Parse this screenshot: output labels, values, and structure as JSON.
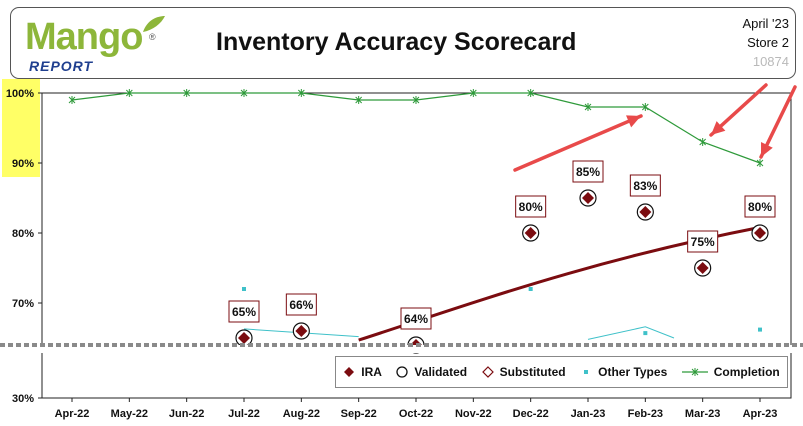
{
  "header": {
    "logo_main": "Mango",
    "logo_sub": "REPORT",
    "logo_reg": "®",
    "title": "Inventory Accuracy Scorecard",
    "period": "April '23",
    "store": "Store 2",
    "code": "10874"
  },
  "colors": {
    "ira": "#7b0c10",
    "completion": "#2e9a3a",
    "other": "#3fc1c9",
    "arrow": "#e84a4a",
    "highlight": "#ffff66"
  },
  "chart_data": {
    "type": "line",
    "categories": [
      "Apr-22",
      "May-22",
      "Jun-22",
      "Jul-22",
      "Aug-22",
      "Sep-22",
      "Oct-22",
      "Nov-22",
      "Dec-22",
      "Jan-23",
      "Feb-23",
      "Mar-23",
      "Apr-23"
    ],
    "y_tick_labels": [
      "100%",
      "90%",
      "80%",
      "70%",
      "30%"
    ],
    "y_ticks": [
      100,
      90,
      80,
      70
    ],
    "ylim": [
      64,
      100
    ],
    "y_axis_broken": true,
    "grid": false,
    "legend_position": "bottom-right",
    "series": [
      {
        "name": "IRA",
        "marker": "diamond",
        "values": [
          null,
          null,
          null,
          65,
          66,
          null,
          64,
          null,
          80,
          85,
          83,
          75,
          80
        ]
      },
      {
        "name": "Validated",
        "marker": "circle",
        "values": [
          null,
          null,
          null,
          65,
          66,
          null,
          64,
          null,
          80,
          85,
          83,
          75,
          80
        ]
      },
      {
        "name": "Substituted",
        "marker": "diamond-open",
        "values": [
          null,
          null,
          null,
          null,
          null,
          null,
          null,
          null,
          null,
          null,
          null,
          null,
          null
        ]
      },
      {
        "name": "Other Types",
        "marker": "square",
        "values": [
          null,
          null,
          null,
          72,
          null,
          null,
          null,
          null,
          72,
          null,
          null,
          null,
          null
        ]
      },
      {
        "name": "Completion",
        "marker": "star",
        "values": [
          99,
          100,
          100,
          100,
          100,
          99,
          99,
          100,
          100,
          98,
          98,
          93,
          90
        ]
      }
    ],
    "data_labels": [
      {
        "category": "Jul-22",
        "text": "65%"
      },
      {
        "category": "Aug-22",
        "text": "66%"
      },
      {
        "category": "Oct-22",
        "text": "64%"
      },
      {
        "category": "Dec-22",
        "text": "80%"
      },
      {
        "category": "Jan-23",
        "text": "85%"
      },
      {
        "category": "Feb-23",
        "text": "83%"
      },
      {
        "category": "Mar-23",
        "text": "75%"
      },
      {
        "category": "Apr-23",
        "text": "80%"
      }
    ],
    "trendline": {
      "series": "IRA",
      "type": "polynomial",
      "color": "#7b0c10"
    }
  },
  "legend": {
    "ira": "IRA",
    "validated": "Validated",
    "substituted": "Substituted",
    "other": "Other Types",
    "completion": "Completion"
  }
}
